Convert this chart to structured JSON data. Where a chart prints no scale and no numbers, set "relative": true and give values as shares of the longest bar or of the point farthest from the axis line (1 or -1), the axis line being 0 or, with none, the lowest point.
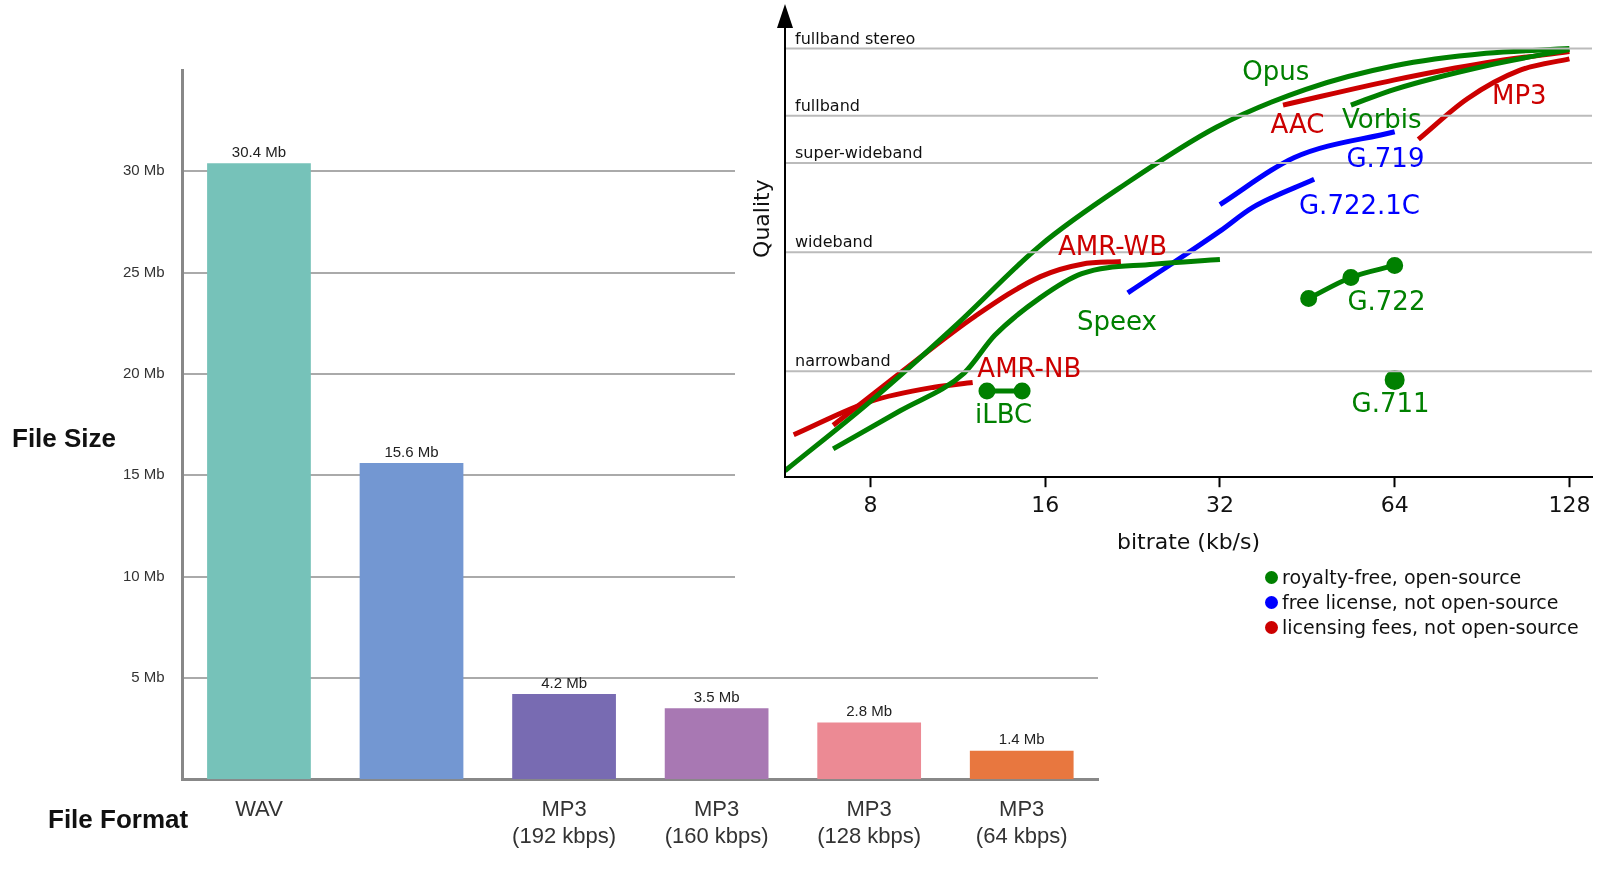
{
  "chart_data": [
    {
      "type": "bar",
      "ylabel": "File Size",
      "xlabel": "File Format",
      "categories": [
        "WAV",
        null,
        "MP3 (192 kbps)",
        "MP3 (160 kbps)",
        "MP3 (128 kbps)",
        "MP3 (64 kbps)"
      ],
      "values": [
        30.4,
        15.6,
        4.2,
        3.5,
        2.8,
        1.4
      ],
      "colors": [
        "#76c2b9",
        "#7397d2",
        "#786bb2",
        "#a878b3",
        "#ec8a94",
        "#e8773f"
      ],
      "value_labels": [
        "30.4 Mb",
        "15.6 Mb",
        "4.2 Mb",
        "3.5 Mb",
        "2.8 Mb",
        "1.4 Mb"
      ],
      "ylim": [
        0,
        35
      ],
      "yticks": [
        {
          "value": 5,
          "label": "5 Mb"
        },
        {
          "value": 10,
          "label": "10 Mb"
        },
        {
          "value": 15,
          "label": "15 Mb"
        },
        {
          "value": 20,
          "label": "20 Mb"
        },
        {
          "value": 25,
          "label": "25 Mb"
        },
        {
          "value": 30,
          "label": "30 Mb"
        }
      ],
      "grid": "y"
    },
    {
      "type": "line",
      "xlabel": "bitrate (kb/s)",
      "ylabel": "Quality",
      "log": "x",
      "marker": "none",
      "relative": true,
      "xlim": [
        5.7,
        140
      ],
      "xticks": [
        8,
        16,
        32,
        64,
        128
      ],
      "ref_lines": [
        {
          "axis": "y",
          "value": 0.247,
          "label": "narrowband"
        },
        {
          "axis": "y",
          "value": 0.525,
          "label": "wideband"
        },
        {
          "axis": "y",
          "value": 0.733,
          "label": "super-wideband"
        },
        {
          "axis": "y",
          "value": 0.843,
          "label": "fullband"
        },
        {
          "axis": "y",
          "value": 1,
          "label": "fullband stereo"
        }
      ],
      "series": [
        {
          "name": "Opus",
          "color": "#008000",
          "x": [
            5.7,
            8,
            11.2,
            15.7,
            22,
            31.6,
            45,
            64,
            92,
            128
          ],
          "values": [
            0.015,
            0.177,
            0.353,
            0.541,
            0.684,
            0.817,
            0.905,
            0.96,
            0.989,
            1
          ]
        },
        {
          "name": "Vorbis",
          "color": "#008000",
          "x": [
            53.8,
            64,
            92,
            128
          ],
          "values": [
            0.868,
            0.905,
            0.96,
            0.998
          ]
        },
        {
          "name": "Speex",
          "color": "#008000",
          "x": [
            6.9,
            9,
            11.6,
            13.1,
            15.7,
            18.5,
            24.6,
            32
          ],
          "values": [
            0.066,
            0.155,
            0.243,
            0.331,
            0.419,
            0.475,
            0.497,
            0.508
          ]
        },
        {
          "name": "iLBC",
          "color": "#008000",
          "marker": "circle",
          "x": [
            12.7,
            14.6
          ],
          "values": [
            0.201,
            0.201
          ]
        },
        {
          "name": "G.722",
          "color": "#008000",
          "marker": "circle",
          "x": [
            45.5,
            53.8,
            64
          ],
          "values": [
            0.417,
            0.466,
            0.494
          ]
        },
        {
          "name": "G.711",
          "color": "#008000",
          "type": "scatter",
          "marker": "circle",
          "x": [
            64
          ],
          "values": [
            0.227
          ]
        },
        {
          "name": "G.719",
          "color": "#0000ff",
          "x": [
            32,
            43,
            64
          ],
          "values": [
            0.636,
            0.746,
            0.806
          ]
        },
        {
          "name": "G.722.1C",
          "color": "#0000ff",
          "x": [
            22.2,
            32,
            36.4,
            46.5
          ],
          "values": [
            0.43,
            0.574,
            0.629,
            0.695
          ]
        },
        {
          "name": "AAC",
          "color": "#cc0000",
          "x": [
            41.1,
            64,
            92,
            128
          ],
          "values": [
            0.868,
            0.927,
            0.967,
            0.993
          ]
        },
        {
          "name": "MP3",
          "color": "#cc0000",
          "x": [
            70.3,
            85.4,
            105,
            128
          ],
          "values": [
            0.788,
            0.883,
            0.949,
            0.976
          ]
        },
        {
          "name": "AMR-WB",
          "color": "#cc0000",
          "x": [
            6.9,
            9,
            12.1,
            15.7,
            18.5,
            21.6
          ],
          "values": [
            0.121,
            0.243,
            0.375,
            0.468,
            0.497,
            0.503
          ]
        },
        {
          "name": "AMR-NB",
          "color": "#cc0000",
          "x": [
            5.9,
            8,
            10.3,
            12
          ],
          "values": [
            0.099,
            0.177,
            0.21,
            0.221
          ]
        }
      ],
      "annotations": [
        "royalty-free, open-source",
        "free license, not open-source",
        "licensing fees, not open-source"
      ]
    }
  ]
}
